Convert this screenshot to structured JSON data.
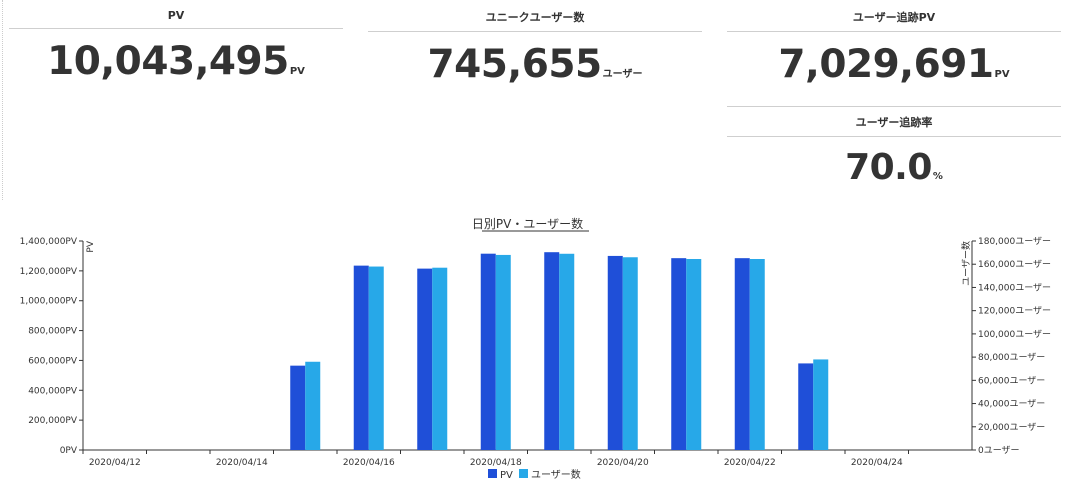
{
  "cards": [
    {
      "title": "PV",
      "value": "10,043,495",
      "unit": "PV"
    },
    {
      "title": "ユニークユーザー数",
      "value": "745,655",
      "unit": "ユーザー"
    },
    {
      "title": "ユーザー追跡PV",
      "value": "7,029,691",
      "unit": "PV"
    },
    {
      "title": "ユーザー追跡率",
      "value": "70.0",
      "unit": "%"
    }
  ],
  "colors": {
    "pv": "#1f4fd8",
    "users": "#27a8e8"
  },
  "chart_data": {
    "type": "bar",
    "title": "日別PV・ユーザー数",
    "ylabel_left": "PV",
    "ylabel_right": "ユーザー数",
    "categories": [
      "2020/04/12",
      "2020/04/13",
      "2020/04/14",
      "2020/04/15",
      "2020/04/16",
      "2020/04/17",
      "2020/04/18",
      "2020/04/19",
      "2020/04/20",
      "2020/04/21",
      "2020/04/22",
      "2020/04/23",
      "2020/04/24",
      "2020/04/25"
    ],
    "x_tick_labels": [
      "2020/04/12",
      "2020/04/14",
      "2020/04/16",
      "2020/04/18",
      "2020/04/20",
      "2020/04/22",
      "2020/04/24"
    ],
    "series": [
      {
        "name": "PV",
        "axis": "left",
        "values": [
          0,
          0,
          0,
          565000,
          1235000,
          1215000,
          1315000,
          1325000,
          1300000,
          1285000,
          1285000,
          580000,
          0,
          0
        ]
      },
      {
        "name": "ユーザー数",
        "axis": "right",
        "values": [
          0,
          0,
          0,
          76000,
          158000,
          157000,
          168000,
          169000,
          166000,
          164500,
          164500,
          78000,
          0,
          0
        ]
      }
    ],
    "ylim_left": [
      0,
      1400000
    ],
    "ylim_right": [
      0,
      180000
    ],
    "y_ticks_left": [
      "0PV",
      "200,000PV",
      "400,000PV",
      "600,000PV",
      "800,000PV",
      "1,000,000PV",
      "1,200,000PV",
      "1,400,000PV"
    ],
    "y_ticks_right": [
      "0ユーザー",
      "20,000ユーザー",
      "40,000ユーザー",
      "60,000ユーザー",
      "80,000ユーザー",
      "100,000ユーザー",
      "120,000ユーザー",
      "140,000ユーザー",
      "160,000ユーザー",
      "180,000ユーザー"
    ],
    "legend": "bottom-center"
  }
}
